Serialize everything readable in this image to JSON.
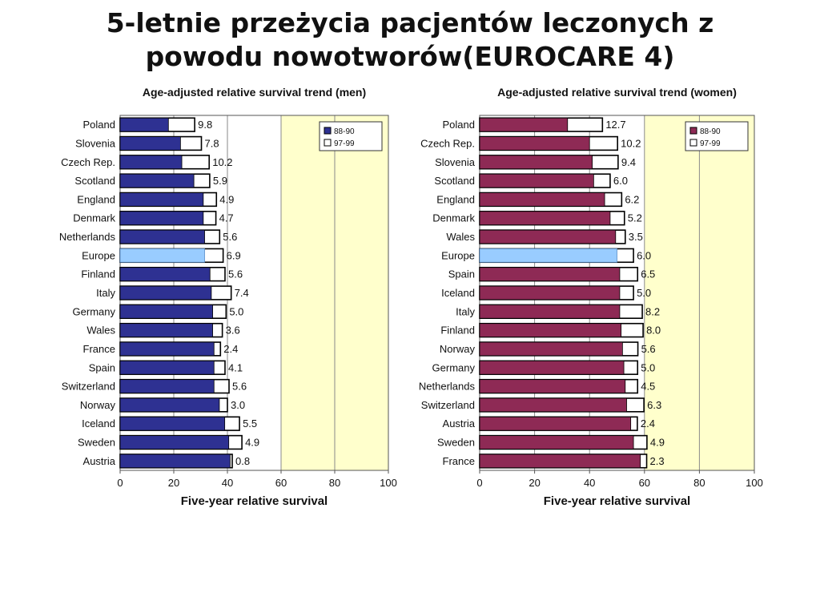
{
  "slide": {
    "title_line1": "5-letnie przeżycia pacjentów leczonych z",
    "title_line2": "powodu nowotworów(EUROCARE 4)"
  },
  "chart_data": [
    {
      "type": "bar",
      "title": "Age-adjusted relative survival trend (men)",
      "xlabel": "Five-year relative survival",
      "xlim": [
        0,
        100
      ],
      "xticks": [
        0,
        20,
        40,
        60,
        80,
        100
      ],
      "legend": [
        "88-90",
        "97-99"
      ],
      "legend_position": "top-right",
      "highlight": "Europe",
      "categories": [
        "Poland",
        "Slovenia",
        "Czech Rep.",
        "Scotland",
        "England",
        "Denmark",
        "Netherlands",
        "Europe",
        "Finland",
        "Italy",
        "Germany",
        "Wales",
        "France",
        "Spain",
        "Switzerland",
        "Norway",
        "Iceland",
        "Sweden",
        "Austria"
      ],
      "series": [
        {
          "name": "88-90",
          "values": [
            18,
            22.5,
            23,
            27.5,
            31,
            31,
            31.5,
            31.5,
            33.5,
            34,
            34.5,
            34.5,
            35,
            35,
            35,
            37,
            39,
            40.5,
            41
          ]
        },
        {
          "name": "97-99",
          "values": [
            27.8,
            30.3,
            33.2,
            33.4,
            35.9,
            35.7,
            37.1,
            38.4,
            39.1,
            41.4,
            39.5,
            38.1,
            37.4,
            39.1,
            40.6,
            40,
            44.5,
            45.4,
            41.8
          ]
        }
      ],
      "labels": [
        "9.8",
        "7.8",
        "10.2",
        "5.9",
        "4.9",
        "4.7",
        "5.6",
        "6.9",
        "5.6",
        "7.4",
        "5.0",
        "3.6",
        "2.4",
        "4.1",
        "5.6",
        "3.0",
        "5.5",
        "4.9",
        "0.8"
      ],
      "colors": {
        "bar_8890": "#2e3192",
        "bar_9799": "#ffffff",
        "highlight": "#99ccff",
        "highlight_band": "#ffffcc",
        "plot_bg": "#ffffff"
      }
    },
    {
      "type": "bar",
      "title": "Age-adjusted relative survival trend (women)",
      "xlabel": "Five-year relative survival",
      "xlim": [
        0,
        100
      ],
      "xticks": [
        0,
        20,
        40,
        60,
        80,
        100
      ],
      "legend": [
        "88-90",
        "97-99"
      ],
      "legend_position": "top-right",
      "highlight": "Europe",
      "categories": [
        "Poland",
        "Czech Rep.",
        "Slovenia",
        "Scotland",
        "England",
        "Denmark",
        "Wales",
        "Europe",
        "Spain",
        "Iceland",
        "Italy",
        "Finland",
        "Norway",
        "Germany",
        "Netherlands",
        "Switzerland",
        "Austria",
        "Sweden",
        "France"
      ],
      "series": [
        {
          "name": "88-90",
          "values": [
            32,
            40,
            41,
            41.5,
            45.5,
            47.5,
            49.5,
            50,
            51,
            51,
            51,
            51.5,
            52,
            52.5,
            53,
            53.5,
            55,
            56,
            58.5
          ]
        },
        {
          "name": "97-99",
          "values": [
            44.7,
            50.2,
            50.4,
            47.5,
            51.7,
            52.7,
            53,
            56,
            57.5,
            56,
            59.2,
            59.5,
            57.6,
            57.5,
            57.5,
            59.8,
            57.4,
            60.9,
            60.8
          ]
        }
      ],
      "labels": [
        "12.7",
        "10.2",
        "9.4",
        "6.0",
        "6.2",
        "5.2",
        "3.5",
        "6.0",
        "6.5",
        "5.0",
        "8.2",
        "8.0",
        "5.6",
        "5.0",
        "4.5",
        "6.3",
        "2.4",
        "4.9",
        "2.3"
      ],
      "colors": {
        "bar_8890": "#8e2a55",
        "bar_9799": "#ffffff",
        "highlight": "#99ccff",
        "highlight_band": "#ffffcc",
        "plot_bg": "#ffffff"
      }
    }
  ]
}
